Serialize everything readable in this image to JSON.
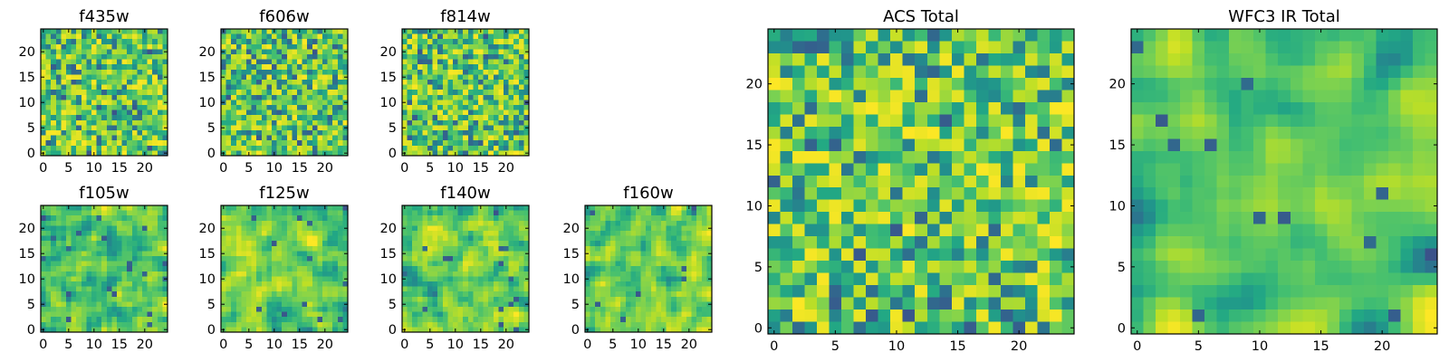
{
  "figure": {
    "colormap": "viridis",
    "colors": {
      "low": "#440154",
      "mid": "#21918c",
      "high": "#fde725",
      "frame": "#000000"
    }
  },
  "chart_data": [
    {
      "type": "heatmap",
      "title": "f435w",
      "shape": [
        25,
        25
      ],
      "xlim": [
        0,
        24
      ],
      "ylim": [
        0,
        24
      ],
      "xticks": [
        0,
        5,
        10,
        15,
        20
      ],
      "yticks": [
        0,
        5,
        10,
        15,
        20
      ],
      "texture": "pixel-noise",
      "seed": 11
    },
    {
      "type": "heatmap",
      "title": "f606w",
      "shape": [
        25,
        25
      ],
      "xlim": [
        0,
        24
      ],
      "ylim": [
        0,
        24
      ],
      "xticks": [
        0,
        5,
        10,
        15,
        20
      ],
      "yticks": [
        0,
        5,
        10,
        15,
        20
      ],
      "texture": "pixel-noise",
      "seed": 23
    },
    {
      "type": "heatmap",
      "title": "f814w",
      "shape": [
        25,
        25
      ],
      "xlim": [
        0,
        24
      ],
      "ylim": [
        0,
        24
      ],
      "xticks": [
        0,
        5,
        10,
        15,
        20
      ],
      "yticks": [
        0,
        5,
        10,
        15,
        20
      ],
      "texture": "pixel-noise",
      "seed": 37
    },
    {
      "type": "heatmap",
      "title": "f105w",
      "shape": [
        25,
        25
      ],
      "xlim": [
        0,
        24
      ],
      "ylim": [
        0,
        24
      ],
      "xticks": [
        0,
        5,
        10,
        15,
        20
      ],
      "yticks": [
        0,
        5,
        10,
        15,
        20
      ],
      "texture": "smooth",
      "seed": 41
    },
    {
      "type": "heatmap",
      "title": "f125w",
      "shape": [
        25,
        25
      ],
      "xlim": [
        0,
        24
      ],
      "ylim": [
        0,
        24
      ],
      "xticks": [
        0,
        5,
        10,
        15,
        20
      ],
      "yticks": [
        0,
        5,
        10,
        15,
        20
      ],
      "texture": "smooth",
      "seed": 53
    },
    {
      "type": "heatmap",
      "title": "f140w",
      "shape": [
        25,
        25
      ],
      "xlim": [
        0,
        24
      ],
      "ylim": [
        0,
        24
      ],
      "xticks": [
        0,
        5,
        10,
        15,
        20
      ],
      "yticks": [
        0,
        5,
        10,
        15,
        20
      ],
      "texture": "smooth",
      "seed": 67
    },
    {
      "type": "heatmap",
      "title": "f160w",
      "shape": [
        25,
        25
      ],
      "xlim": [
        0,
        24
      ],
      "ylim": [
        0,
        24
      ],
      "xticks": [
        0,
        5,
        10,
        15,
        20
      ],
      "yticks": [
        0,
        5,
        10,
        15,
        20
      ],
      "texture": "smooth",
      "seed": 79
    },
    {
      "type": "heatmap",
      "title": "ACS Total",
      "shape": [
        25,
        25
      ],
      "xlim": [
        0,
        24
      ],
      "ylim": [
        0,
        24
      ],
      "xticks": [
        0,
        5,
        10,
        15,
        20
      ],
      "yticks": [
        0,
        5,
        10,
        15,
        20
      ],
      "texture": "pixel-noise-bright",
      "seed": 97
    },
    {
      "type": "heatmap",
      "title": "WFC3 IR Total",
      "shape": [
        25,
        25
      ],
      "xlim": [
        0,
        24
      ],
      "ylim": [
        0,
        24
      ],
      "xticks": [
        0,
        5,
        10,
        15,
        20
      ],
      "yticks": [
        0,
        5,
        10,
        15,
        20
      ],
      "texture": "smooth-bright",
      "seed": 113
    }
  ]
}
